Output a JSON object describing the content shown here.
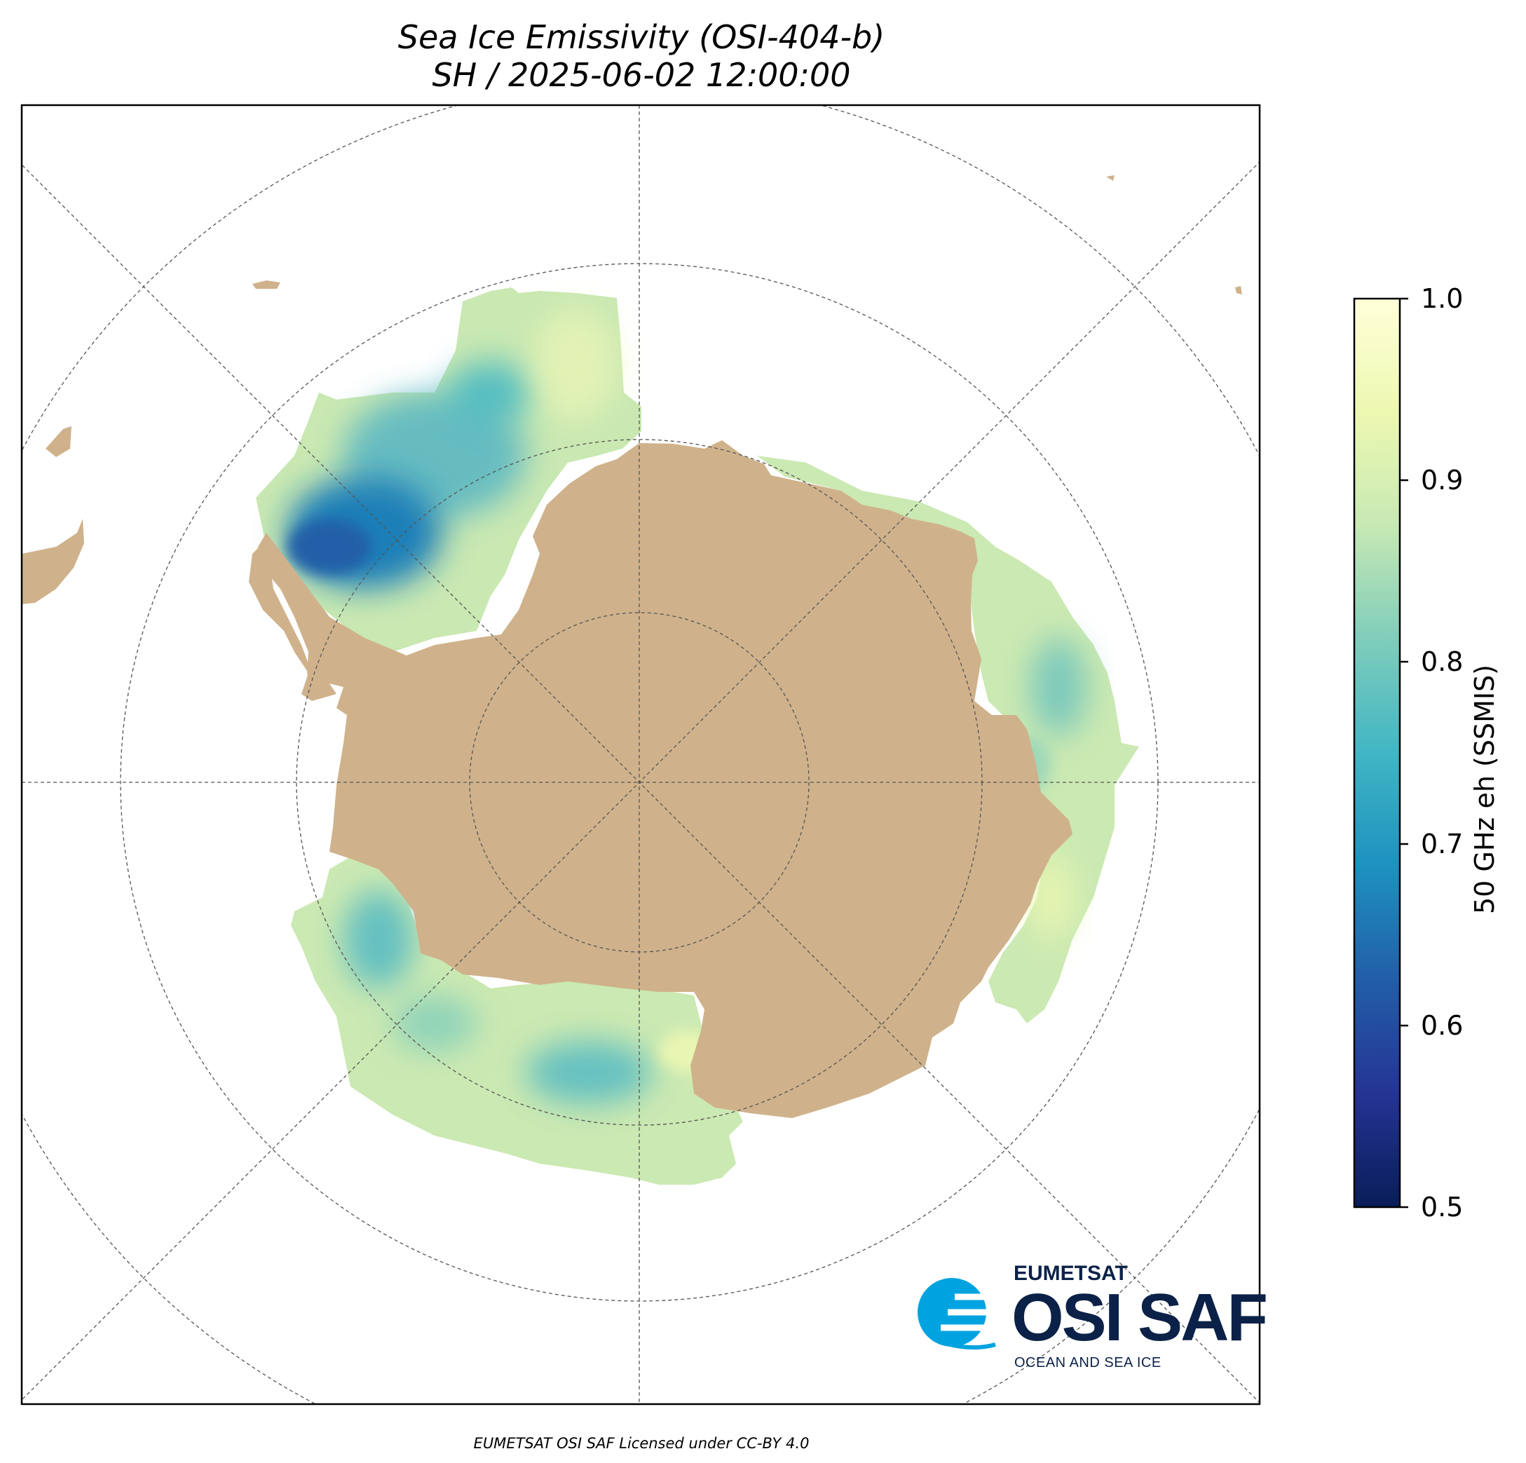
{
  "title": {
    "line1": "Sea Ice Emissivity (OSI-404-b)",
    "line2": "SH / 2025-06-02 12:00:00"
  },
  "colorbar": {
    "label": "50 GHz eh (SSMIS)",
    "min": 0.5,
    "max": 1.0,
    "ticks": [
      "0.5",
      "0.6",
      "0.7",
      "0.8",
      "0.9",
      "1.0"
    ],
    "colormap": [
      "#081d58",
      "#253494",
      "#225ea8",
      "#1d91c0",
      "#41b6c4",
      "#7fcdbb",
      "#c7e9b4",
      "#edf8b1",
      "#ffffd9"
    ]
  },
  "map": {
    "projection": "south-polar-stereographic",
    "center": "South Pole",
    "land_color": "#cfb28b",
    "ocean_color": "#ffffff",
    "gridlines": "dashed",
    "sea_ice_emissivity_range": [
      0.62,
      0.95
    ]
  },
  "logo": {
    "org": "EUMETSAT",
    "name": "OSI SAF",
    "subtitle": "OCEAN AND SEA ICE"
  },
  "footer": "EUMETSAT OSI SAF Licensed under CC-BY 4.0"
}
